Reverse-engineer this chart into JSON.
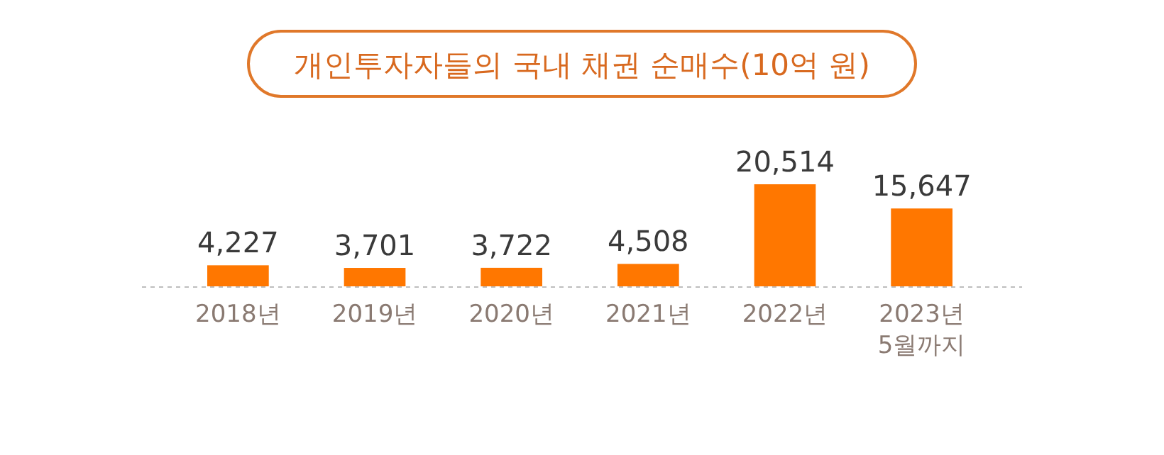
{
  "chart_data": {
    "type": "bar",
    "title": "개인투자자들의 국내 채권 순매수(10억 원)",
    "categories": [
      "2018년",
      "2019년",
      "2020년",
      "2021년",
      "2022년",
      "2023년\n5월까지"
    ],
    "values": [
      4227,
      3701,
      3722,
      4508,
      20514,
      15647
    ],
    "value_labels": [
      "4,227",
      "3,701",
      "3,722",
      "4,508",
      "20,514",
      "15,647"
    ],
    "color": "#ff7700"
  }
}
